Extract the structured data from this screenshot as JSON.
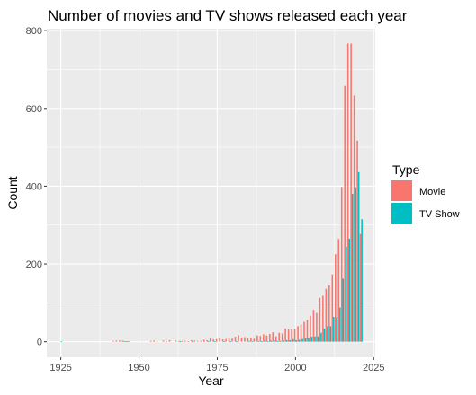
{
  "chart_data": {
    "type": "bar",
    "title": "Number of movies and TV shows released each year",
    "xlabel": "Year",
    "ylabel": "Count",
    "xlim": [
      1920.5,
      2025.5
    ],
    "ylim": [
      -40,
      805
    ],
    "x_ticks": [
      "1925",
      "1950",
      "1975",
      "2000",
      "2025"
    ],
    "x_tick_values": [
      1925,
      1950,
      1975,
      2000,
      2025
    ],
    "y_ticks": [
      "0",
      "200",
      "400",
      "600",
      "800"
    ],
    "y_tick_values": [
      0,
      200,
      400,
      600,
      800
    ],
    "grid": true,
    "legend": {
      "title": "Type",
      "position": "right"
    },
    "series": [
      {
        "name": "Movie",
        "color": "#F8766D",
        "points": [
          [
            1942,
            2
          ],
          [
            1943,
            3
          ],
          [
            1944,
            3
          ],
          [
            1945,
            3
          ],
          [
            1946,
            1
          ],
          [
            1947,
            1
          ],
          [
            1954,
            2
          ],
          [
            1955,
            3
          ],
          [
            1956,
            2
          ],
          [
            1958,
            3
          ],
          [
            1959,
            1
          ],
          [
            1960,
            4
          ],
          [
            1962,
            3
          ],
          [
            1963,
            2
          ],
          [
            1964,
            2
          ],
          [
            1965,
            2
          ],
          [
            1966,
            1
          ],
          [
            1967,
            4
          ],
          [
            1968,
            3
          ],
          [
            1969,
            2
          ],
          [
            1970,
            2
          ],
          [
            1971,
            5
          ],
          [
            1972,
            4
          ],
          [
            1973,
            10
          ],
          [
            1974,
            6
          ],
          [
            1975,
            7
          ],
          [
            1976,
            9
          ],
          [
            1977,
            6
          ],
          [
            1978,
            7
          ],
          [
            1979,
            10
          ],
          [
            1980,
            8
          ],
          [
            1981,
            13
          ],
          [
            1982,
            17
          ],
          [
            1983,
            11
          ],
          [
            1984,
            12
          ],
          [
            1985,
            9
          ],
          [
            1986,
            11
          ],
          [
            1987,
            8
          ],
          [
            1988,
            16
          ],
          [
            1989,
            15
          ],
          [
            1990,
            19
          ],
          [
            1991,
            16
          ],
          [
            1992,
            20
          ],
          [
            1993,
            24
          ],
          [
            1994,
            14
          ],
          [
            1995,
            23
          ],
          [
            1996,
            21
          ],
          [
            1997,
            34
          ],
          [
            1998,
            32
          ],
          [
            1999,
            32
          ],
          [
            2000,
            33
          ],
          [
            2001,
            40
          ],
          [
            2002,
            44
          ],
          [
            2003,
            51
          ],
          [
            2004,
            56
          ],
          [
            2005,
            67
          ],
          [
            2006,
            82
          ],
          [
            2007,
            74
          ],
          [
            2008,
            113
          ],
          [
            2009,
            118
          ],
          [
            2010,
            136
          ],
          [
            2011,
            145
          ],
          [
            2012,
            173
          ],
          [
            2013,
            225
          ],
          [
            2014,
            264
          ],
          [
            2015,
            398
          ],
          [
            2016,
            658
          ],
          [
            2017,
            767
          ],
          [
            2018,
            767
          ],
          [
            2019,
            633
          ],
          [
            2020,
            517
          ],
          [
            2021,
            277
          ]
        ]
      },
      {
        "name": "TV Show",
        "color": "#00BFC4",
        "points": [
          [
            1925,
            1
          ],
          [
            1945,
            1
          ],
          [
            1946,
            1
          ],
          [
            1963,
            1
          ],
          [
            1967,
            1
          ],
          [
            1972,
            1
          ],
          [
            1974,
            1
          ],
          [
            1977,
            1
          ],
          [
            1979,
            1
          ],
          [
            1981,
            1
          ],
          [
            1985,
            2
          ],
          [
            1986,
            2
          ],
          [
            1988,
            2
          ],
          [
            1989,
            1
          ],
          [
            1990,
            3
          ],
          [
            1991,
            1
          ],
          [
            1992,
            3
          ],
          [
            1993,
            4
          ],
          [
            1994,
            2
          ],
          [
            1995,
            2
          ],
          [
            1996,
            3
          ],
          [
            1997,
            4
          ],
          [
            1998,
            4
          ],
          [
            1999,
            7
          ],
          [
            2000,
            4
          ],
          [
            2001,
            5
          ],
          [
            2002,
            7
          ],
          [
            2003,
            10
          ],
          [
            2004,
            9
          ],
          [
            2005,
            13
          ],
          [
            2006,
            14
          ],
          [
            2007,
            14
          ],
          [
            2008,
            23
          ],
          [
            2009,
            34
          ],
          [
            2010,
            40
          ],
          [
            2011,
            40
          ],
          [
            2012,
            64
          ],
          [
            2013,
            63
          ],
          [
            2014,
            88
          ],
          [
            2015,
            162
          ],
          [
            2016,
            244
          ],
          [
            2017,
            265
          ],
          [
            2018,
            380
          ],
          [
            2019,
            397
          ],
          [
            2020,
            436
          ],
          [
            2021,
            315
          ]
        ]
      }
    ]
  }
}
